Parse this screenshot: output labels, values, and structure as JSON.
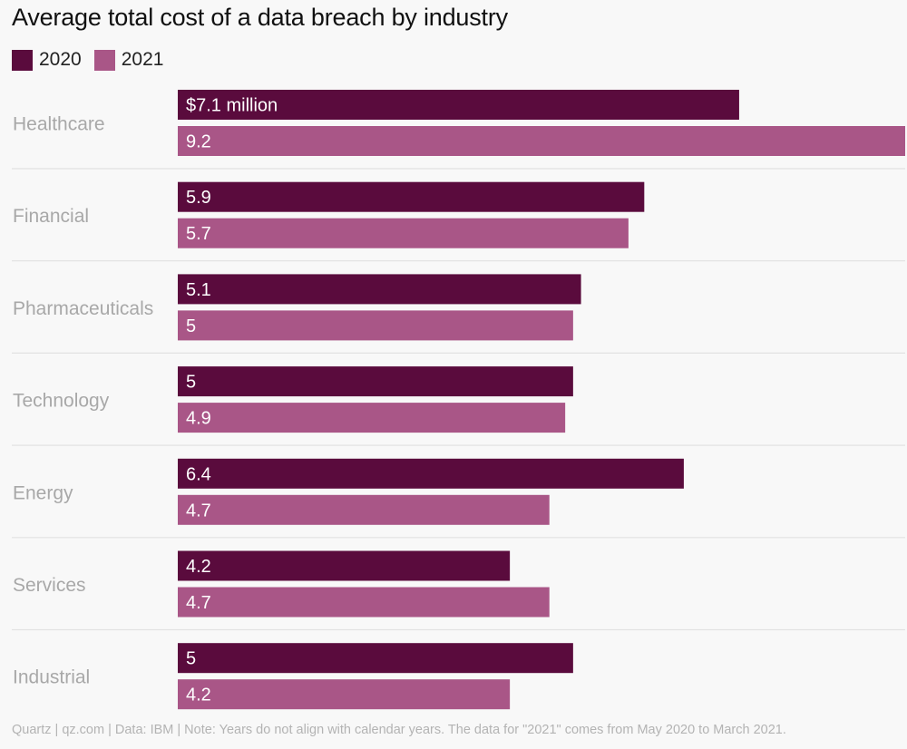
{
  "chart_data": {
    "type": "bar",
    "orientation": "horizontal",
    "title": "Average total cost of a data breach by industry",
    "categories": [
      "Healthcare",
      "Financial",
      "Pharmaceuticals",
      "Technology",
      "Energy",
      "Services",
      "Industrial"
    ],
    "series": [
      {
        "name": "2020",
        "color": "#5a0b3d",
        "values": [
          7.1,
          5.9,
          5.1,
          5,
          6.4,
          4.2,
          5
        ]
      },
      {
        "name": "2021",
        "color": "#a95687",
        "values": [
          9.2,
          5.7,
          5,
          4.9,
          4.7,
          4.7,
          4.2
        ]
      }
    ],
    "data_labels": {
      "2020": [
        "$7.1 million",
        "5.9",
        "5.1",
        "5",
        "6.4",
        "4.2",
        "5"
      ],
      "2021": [
        "9.2",
        "5.7",
        "5",
        "4.9",
        "4.7",
        "4.7",
        "4.2"
      ]
    },
    "unit": "million USD",
    "xlim": [
      0,
      9.2
    ],
    "grid": false,
    "legend": "top-left",
    "xlabel": "",
    "ylabel": ""
  },
  "legend": [
    {
      "label": "2020",
      "color": "#5a0b3d"
    },
    {
      "label": "2021",
      "color": "#a95687"
    }
  ],
  "footer": "Quartz | qz.com | Data: IBM | Note: Years do not align with calendar years. The data for \"2021\" comes from May 2020 to March 2021."
}
